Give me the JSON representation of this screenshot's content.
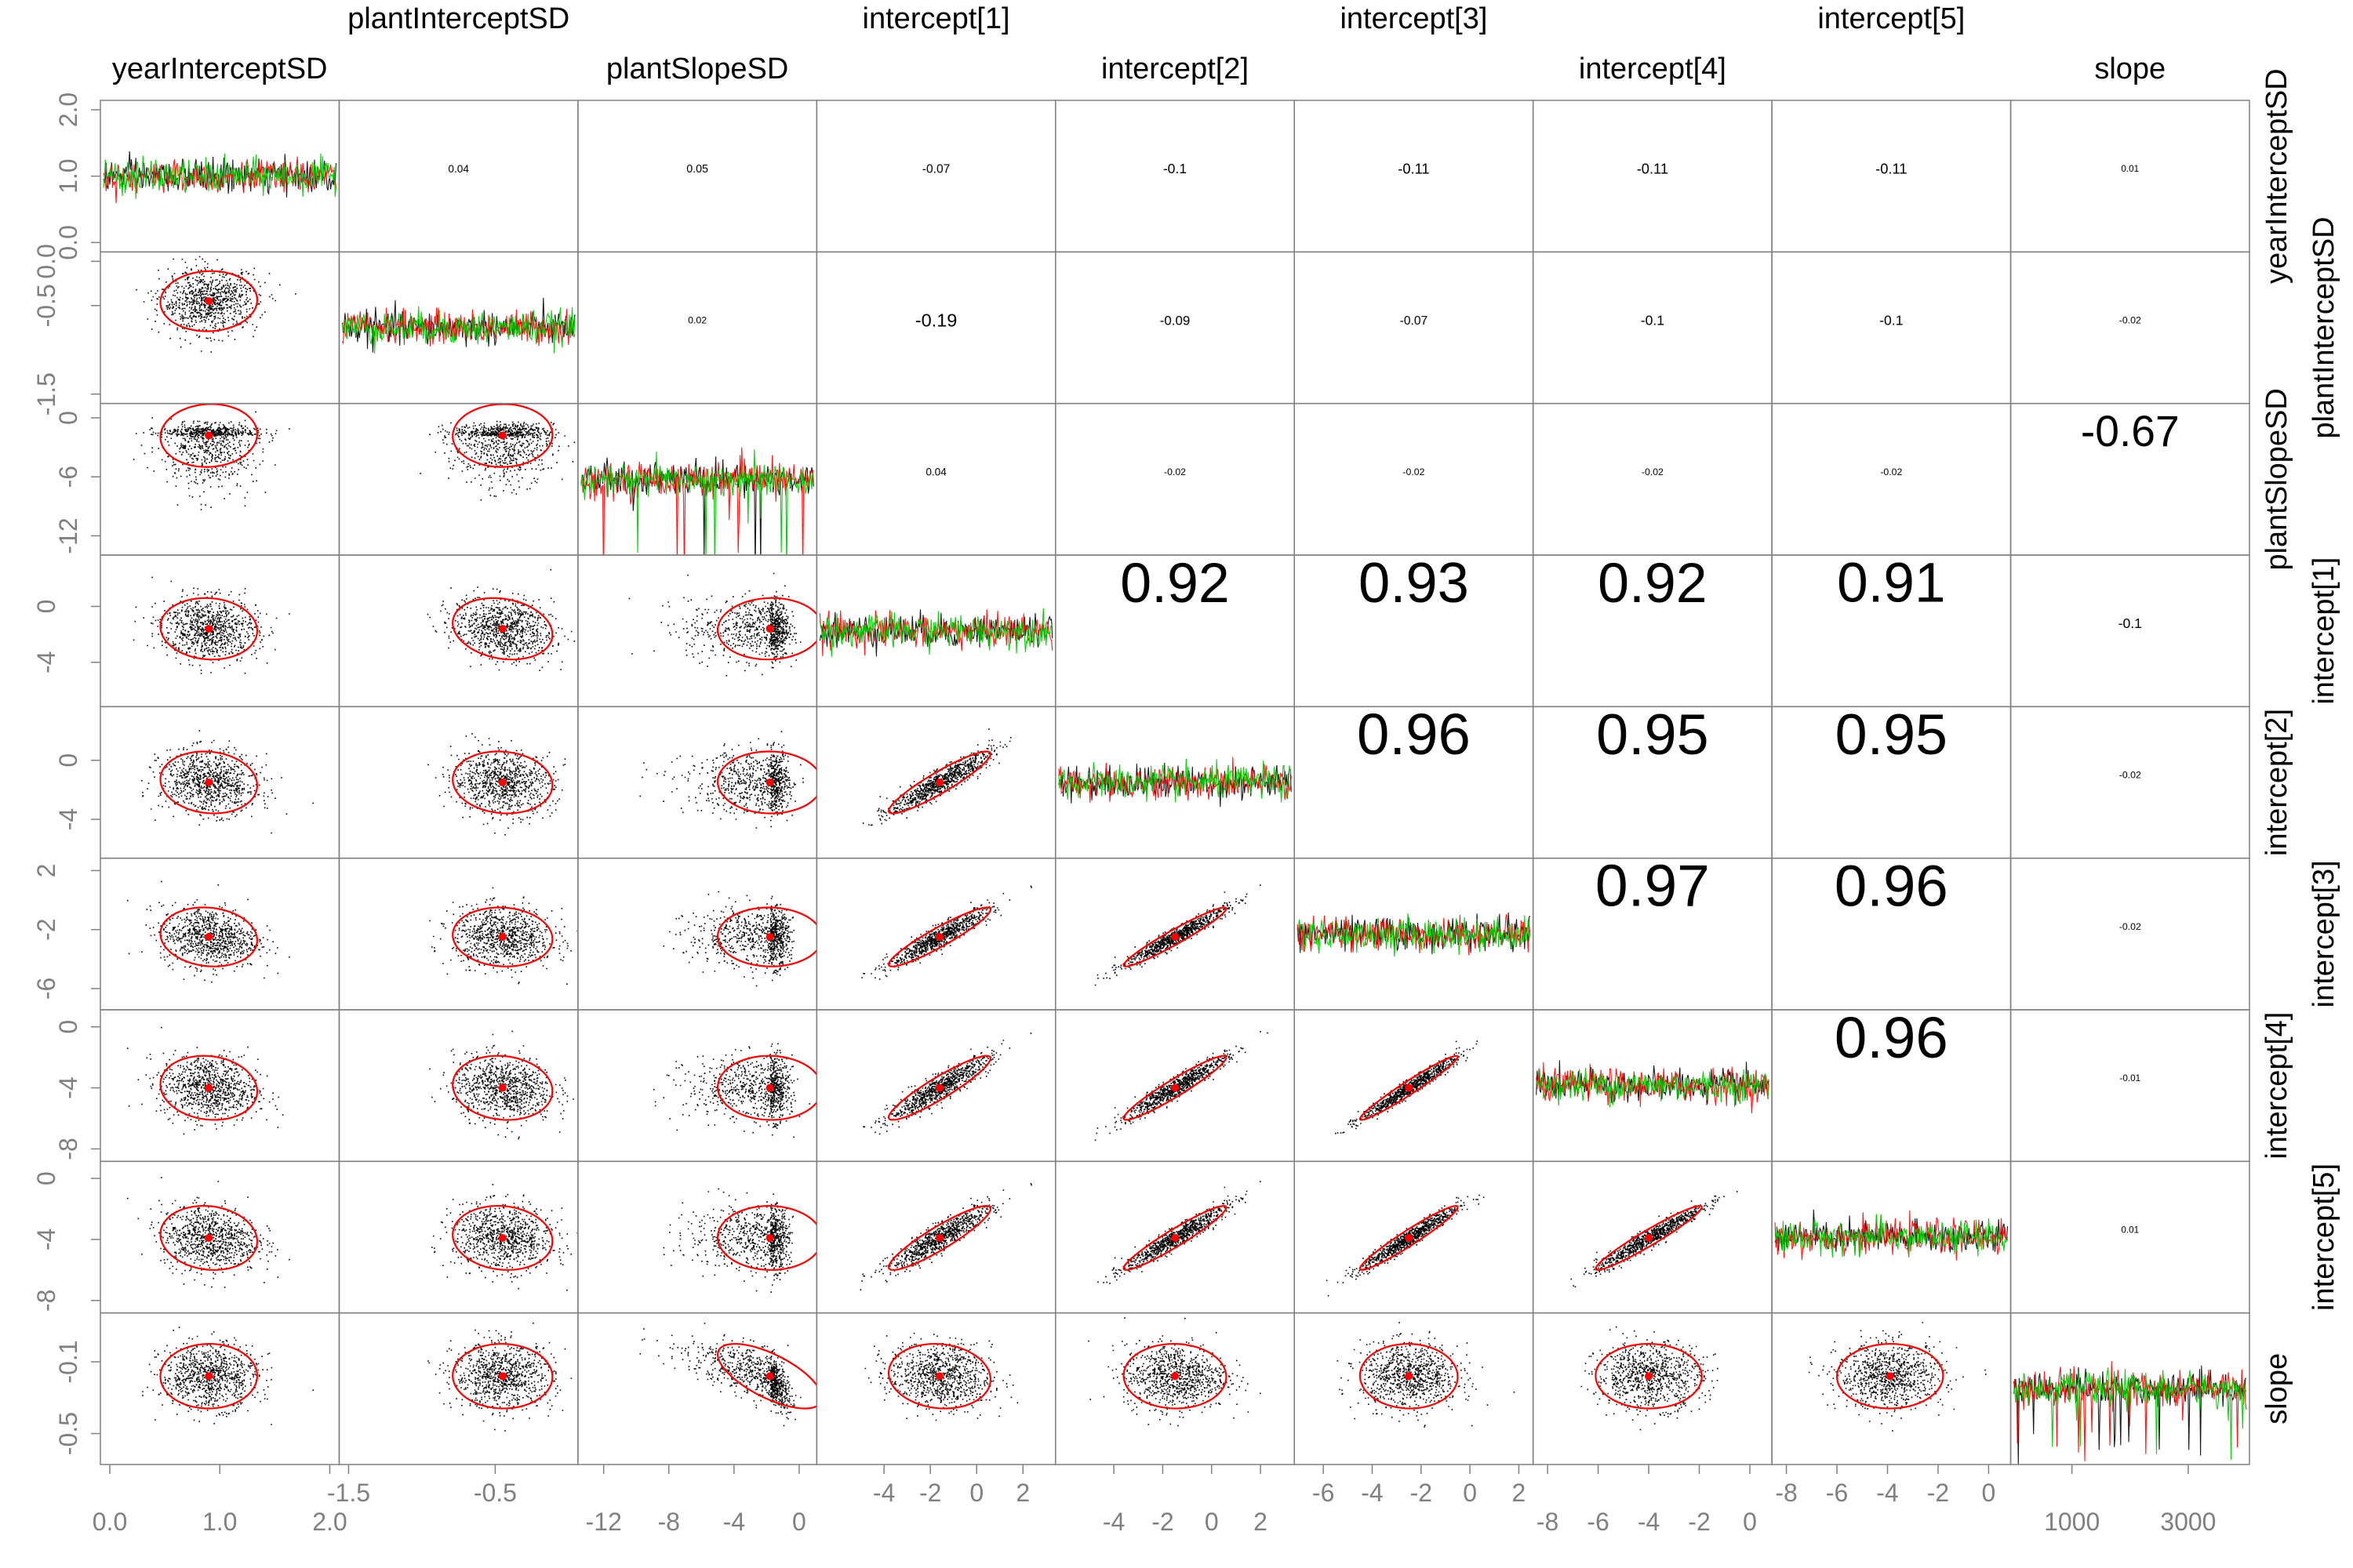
{
  "colors": {
    "chain_colors": [
      "#000000",
      "#ff0000",
      "#00cc00"
    ],
    "ellipse": "#ff0000",
    "center_dot": "#ff0000",
    "scatter": "#000000",
    "frame": "#808080",
    "tick_labels": "#808080",
    "labels": "#000000",
    "background": "#ffffff"
  },
  "chart_data": {
    "type": "scatter",
    "title": "",
    "subtitle": "",
    "layout": "pairs matrix: trace plots on diagonal, scatter with ellipse below, correlation above",
    "variables": [
      {
        "name": "yearInterceptSD",
        "range": [
          0.0,
          2.0
        ],
        "ticks": [
          "0.0",
          "1.0",
          "2.0"
        ],
        "mean": 0.9,
        "sd": 0.22,
        "trace_center": 0.93,
        "trace_spread": 0.24
      },
      {
        "name": "plantInterceptSD",
        "range": [
          -1.5,
          0.0
        ],
        "ticks": [
          "-1.5",
          "-0.5",
          "0.0"
        ],
        "mean": -0.45,
        "sd": 0.17,
        "trace_center": -0.45,
        "trace_spread": 0.18
      },
      {
        "name": "plantSlopeSD",
        "range": [
          -13.0,
          0.5
        ],
        "ticks": [
          "-12",
          "-8",
          "-4",
          "0"
        ],
        "mean": -1.8,
        "sd": 1.6,
        "trace_center": -2.4,
        "trace_spread": 1.2
      },
      {
        "name": "intercept[1]",
        "range": [
          -6.5,
          3.0
        ],
        "ticks": [
          "-4",
          "-2",
          "0",
          "2"
        ],
        "mean": -1.6,
        "sd": 1.1,
        "trace_center": -1.6,
        "trace_spread": 1.1
      },
      {
        "name": "intercept[2]",
        "range": [
          -6.0,
          3.0
        ],
        "ticks": [
          "-4",
          "-2",
          "0",
          "2"
        ],
        "mean": -1.5,
        "sd": 1.05,
        "trace_center": -1.5,
        "trace_spread": 1.05
      },
      {
        "name": "intercept[3]",
        "range": [
          -6.8,
          2.2
        ],
        "ticks": [
          "-6",
          "-4",
          "-2",
          "0",
          "2"
        ],
        "mean": -2.5,
        "sd": 1.0,
        "trace_center": -2.5,
        "trace_spread": 1.0
      },
      {
        "name": "intercept[4]",
        "range": [
          -8.2,
          0.5
        ],
        "ticks": [
          "-8",
          "-6",
          "-4",
          "-2",
          "0"
        ],
        "mean": -4.0,
        "sd": 1.05,
        "trace_center": -4.0,
        "trace_spread": 1.05
      },
      {
        "name": "intercept[5]",
        "range": [
          -8.2,
          0.5
        ],
        "ticks": [
          "-8",
          "-6",
          "-4",
          "-2",
          "0"
        ],
        "mean": -3.9,
        "sd": 1.05,
        "trace_center": -3.9,
        "trace_spread": 1.05
      },
      {
        "name": "slope",
        "range": [
          -0.62,
          0.12
        ],
        "ticks": [
          "-0.5",
          "-0.1"
        ],
        "mean": -0.18,
        "sd": 0.09,
        "trace_center": -0.12,
        "trace_spread": 0.07
      }
    ],
    "left_axis_ticks": [
      {
        "row": 0,
        "ticks": [
          "0.0",
          "1.0",
          "2.0"
        ],
        "values": [
          0.0,
          1.0,
          2.0
        ]
      },
      {
        "row": 1,
        "ticks": [
          "-1.5",
          "-0.5",
          "0.0"
        ],
        "values": [
          -1.5,
          -0.5,
          0.0
        ]
      },
      {
        "row": 2,
        "ticks": [
          "-12",
          "-6",
          "0"
        ],
        "values": [
          -12,
          -6,
          0
        ]
      },
      {
        "row": 3,
        "ticks": [
          "-4",
          "0"
        ],
        "values": [
          -4,
          0
        ]
      },
      {
        "row": 4,
        "ticks": [
          "-4",
          "0"
        ],
        "values": [
          -4,
          0
        ]
      },
      {
        "row": 5,
        "ticks": [
          "-6",
          "-2",
          "2"
        ],
        "values": [
          -6,
          -2,
          2
        ]
      },
      {
        "row": 6,
        "ticks": [
          "-8",
          "-4",
          "0"
        ],
        "values": [
          -8,
          -4,
          0
        ]
      },
      {
        "row": 7,
        "ticks": [
          "-8",
          "-4",
          "0"
        ],
        "values": [
          -8,
          -4,
          0
        ]
      },
      {
        "row": 8,
        "ticks": [
          "-0.5",
          "-0.1"
        ],
        "values": [
          -0.5,
          -0.1
        ]
      }
    ],
    "bottom_axis_ticks": [
      {
        "col": 0,
        "ticks": [
          "0.0",
          "1.0",
          "2.0"
        ],
        "values": [
          0.0,
          1.0,
          2.0
        ]
      },
      {
        "col": 1,
        "ticks": [
          "-1.5",
          "-0.5"
        ],
        "values": [
          -1.5,
          -0.5
        ]
      },
      {
        "col": 2,
        "ticks": [
          "-12",
          "-8",
          "-4",
          "0"
        ],
        "values": [
          -12,
          -8,
          -4,
          0
        ]
      },
      {
        "col": 3,
        "ticks": [
          "-4",
          "-2",
          "0",
          "2"
        ],
        "values": [
          -4,
          -2,
          0,
          2
        ]
      },
      {
        "col": 4,
        "ticks": [
          "-4",
          "-2",
          "0",
          "2"
        ],
        "values": [
          -4,
          -2,
          0,
          2
        ]
      },
      {
        "col": 5,
        "ticks": [
          "-6",
          "-4",
          "-2",
          "0",
          "2"
        ],
        "values": [
          -6,
          -4,
          -2,
          0,
          2
        ]
      },
      {
        "col": 6,
        "ticks": [
          "-8",
          "-6",
          "-4",
          "-2",
          "0"
        ],
        "values": [
          -8,
          -6,
          -4,
          -2,
          0
        ]
      },
      {
        "col": 7,
        "ticks": [
          "-8",
          "-6",
          "-4",
          "-2",
          "0"
        ],
        "values": [
          -8,
          -6,
          -4,
          -2,
          0
        ]
      },
      {
        "col": 8,
        "ticks": [
          "1000",
          "3000"
        ],
        "values": [
          1000,
          3000
        ]
      }
    ],
    "correlations": [
      {
        "row": 0,
        "col": 1,
        "r": 0.04,
        "label": "0.04"
      },
      {
        "row": 0,
        "col": 2,
        "r": 0.05,
        "label": "0.05"
      },
      {
        "row": 0,
        "col": 3,
        "r": -0.07,
        "label": "-0.07"
      },
      {
        "row": 0,
        "col": 4,
        "r": -0.1,
        "label": "-0.1"
      },
      {
        "row": 0,
        "col": 5,
        "r": -0.11,
        "label": "-0.11"
      },
      {
        "row": 0,
        "col": 6,
        "r": -0.11,
        "label": "-0.11"
      },
      {
        "row": 0,
        "col": 7,
        "r": -0.11,
        "label": "-0.11"
      },
      {
        "row": 0,
        "col": 8,
        "r": 0.01,
        "label": "0.01"
      },
      {
        "row": 1,
        "col": 2,
        "r": 0.02,
        "label": "0.02"
      },
      {
        "row": 1,
        "col": 3,
        "r": -0.19,
        "label": "-0.19"
      },
      {
        "row": 1,
        "col": 4,
        "r": -0.09,
        "label": "-0.09"
      },
      {
        "row": 1,
        "col": 5,
        "r": -0.07,
        "label": "-0.07"
      },
      {
        "row": 1,
        "col": 6,
        "r": -0.1,
        "label": "-0.1"
      },
      {
        "row": 1,
        "col": 7,
        "r": -0.1,
        "label": "-0.1"
      },
      {
        "row": 1,
        "col": 8,
        "r": -0.02,
        "label": "-0.02"
      },
      {
        "row": 2,
        "col": 3,
        "r": 0.04,
        "label": "0.04"
      },
      {
        "row": 2,
        "col": 4,
        "r": -0.02,
        "label": "-0.02"
      },
      {
        "row": 2,
        "col": 5,
        "r": -0.02,
        "label": "-0.02"
      },
      {
        "row": 2,
        "col": 6,
        "r": -0.02,
        "label": "-0.02"
      },
      {
        "row": 2,
        "col": 7,
        "r": -0.02,
        "label": "-0.02"
      },
      {
        "row": 2,
        "col": 8,
        "r": -0.67,
        "label": "-0.67"
      },
      {
        "row": 3,
        "col": 4,
        "r": 0.92,
        "label": "0.92"
      },
      {
        "row": 3,
        "col": 5,
        "r": 0.93,
        "label": "0.93"
      },
      {
        "row": 3,
        "col": 6,
        "r": 0.92,
        "label": "0.92"
      },
      {
        "row": 3,
        "col": 7,
        "r": 0.91,
        "label": "0.91"
      },
      {
        "row": 3,
        "col": 8,
        "r": -0.1,
        "label": "-0.1"
      },
      {
        "row": 4,
        "col": 5,
        "r": 0.96,
        "label": "0.96"
      },
      {
        "row": 4,
        "col": 6,
        "r": 0.95,
        "label": "0.95"
      },
      {
        "row": 4,
        "col": 7,
        "r": 0.95,
        "label": "0.95"
      },
      {
        "row": 4,
        "col": 8,
        "r": -0.02,
        "label": "-0.02"
      },
      {
        "row": 5,
        "col": 6,
        "r": 0.97,
        "label": "0.97"
      },
      {
        "row": 5,
        "col": 7,
        "r": 0.96,
        "label": "0.96"
      },
      {
        "row": 5,
        "col": 8,
        "r": -0.02,
        "label": "-0.02"
      },
      {
        "row": 6,
        "col": 7,
        "r": 0.96,
        "label": "0.96"
      },
      {
        "row": 6,
        "col": 8,
        "r": -0.01,
        "label": "-0.01"
      },
      {
        "row": 7,
        "col": 8,
        "r": 0.01,
        "label": "0.01"
      }
    ],
    "trace": {
      "iterations": [
        0,
        4000
      ],
      "chains": 3
    },
    "grid": false,
    "legend": "none"
  }
}
